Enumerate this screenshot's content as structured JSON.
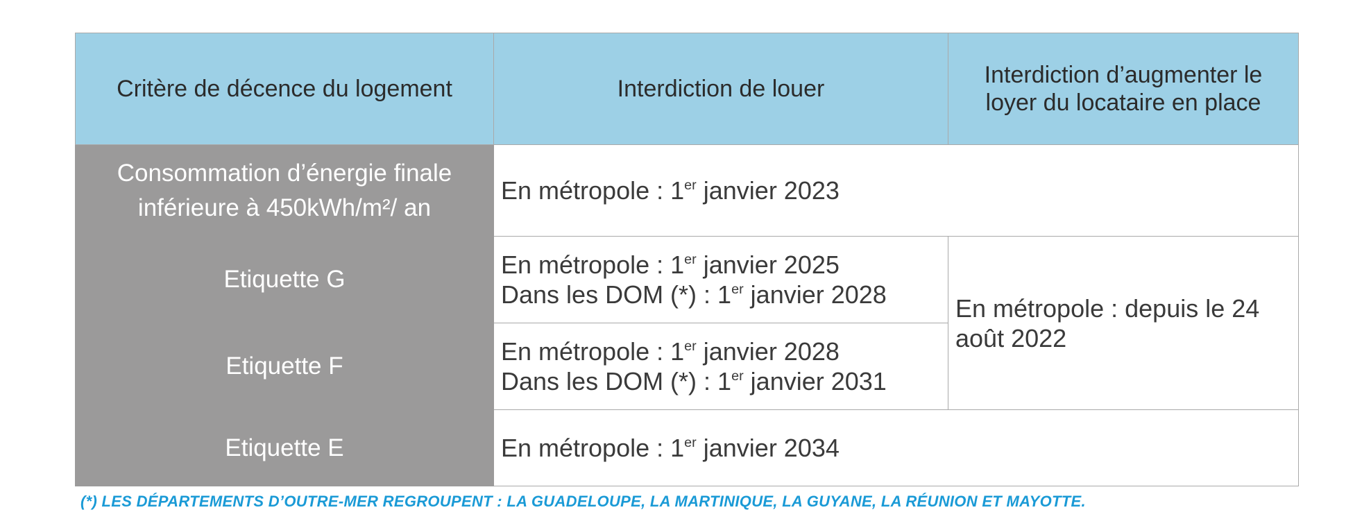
{
  "table": {
    "headers": [
      "Critère de décence du logement",
      "Interdiction de louer",
      "Interdiction d’augmenter le loyer du locataire en place"
    ],
    "rows": [
      {
        "label": "Consommation d’énergie finale inférieure à 450kWh/m²/ an",
        "louer": [
          "En métropole : 1|er| janvier 2023"
        ]
      },
      {
        "label": "Etiquette G",
        "louer": [
          "En métropole : 1|er| janvier 2025",
          "Dans les DOM (*) : 1|er| janvier 2028"
        ],
        "augmenter": "En métropole : depuis le 24 août 2022"
      },
      {
        "label": "Etiquette F",
        "louer": [
          "En métropole : 1|er| janvier 2028",
          "Dans les DOM (*) : 1|er| janvier 2031"
        ]
      },
      {
        "label": "Etiquette E",
        "louer": [
          "En métropole : 1|er| janvier 2034"
        ]
      }
    ]
  },
  "footnote": "(*) LES DÉPARTEMENTS D’OUTRE-MER REGROUPENT : LA GUADELOUPE, LA MARTINIQUE, LA GUYANE, LA RÉUNION ET MAYOTTE."
}
